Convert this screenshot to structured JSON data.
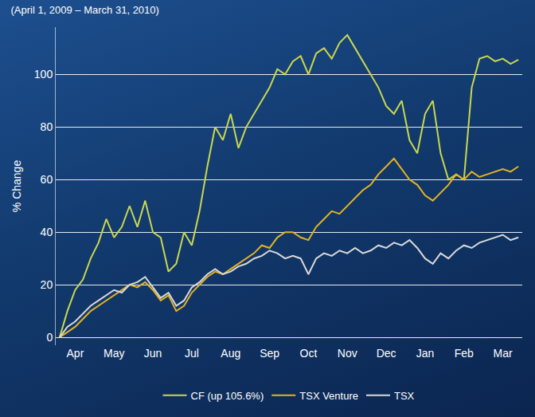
{
  "chart_data": {
    "type": "line",
    "title": "(April 1, 2009 – March 31, 2010)",
    "y_label": "% Change",
    "categories": [
      null,
      null,
      "Apr",
      null,
      null,
      null,
      null,
      "May",
      null,
      null,
      null,
      null,
      "Jun",
      null,
      null,
      null,
      null,
      "Jul",
      null,
      null,
      null,
      null,
      "Aug",
      null,
      null,
      null,
      null,
      "Sep",
      null,
      null,
      null,
      null,
      "Oct",
      null,
      null,
      null,
      null,
      "Nov",
      null,
      null,
      null,
      null,
      "Dec",
      null,
      null,
      null,
      null,
      "Jan",
      null,
      null,
      null,
      null,
      "Feb",
      null,
      null,
      null,
      null,
      "Mar",
      null,
      null
    ],
    "series": [
      {
        "name": "CF (up 105.6%)",
        "color": "#c9d84c",
        "values": [
          0,
          10,
          18,
          22,
          30,
          36,
          45,
          38,
          42,
          50,
          42,
          52,
          40,
          38,
          25,
          28,
          40,
          35,
          48,
          65,
          80,
          75,
          85,
          72,
          80,
          85,
          90,
          95,
          102,
          100,
          105,
          107,
          100,
          108,
          110,
          106,
          112,
          115,
          110,
          105,
          100,
          95,
          88,
          85,
          90,
          75,
          70,
          85,
          90,
          70,
          60,
          62,
          60,
          95,
          106,
          107,
          105,
          106,
          104,
          105.6
        ]
      },
      {
        "name": "TSX Venture",
        "color": "#e3b322",
        "values": [
          0,
          2,
          4,
          7,
          10,
          12,
          14,
          16,
          18,
          20,
          19,
          21,
          18,
          14,
          16,
          10,
          12,
          17,
          20,
          23,
          25,
          24,
          26,
          28,
          30,
          32,
          35,
          34,
          38,
          40,
          40,
          38,
          37,
          42,
          45,
          48,
          47,
          50,
          53,
          56,
          58,
          62,
          65,
          68,
          64,
          60,
          58,
          54,
          52,
          55,
          58,
          62,
          60,
          63,
          61,
          62,
          63,
          64,
          63,
          65
        ]
      },
      {
        "name": "TSX",
        "color": "#d9d9d9",
        "values": [
          0,
          4,
          6,
          9,
          12,
          14,
          16,
          18,
          17,
          20,
          21,
          23,
          19,
          15,
          17,
          12,
          14,
          19,
          21,
          24,
          26,
          24,
          25,
          27,
          28,
          30,
          31,
          33,
          32,
          30,
          31,
          30,
          24,
          30,
          32,
          31,
          33,
          32,
          34,
          32,
          33,
          35,
          34,
          36,
          35,
          37,
          34,
          30,
          28,
          32,
          30,
          33,
          35,
          34,
          36,
          37,
          38,
          39,
          37,
          38
        ]
      }
    ],
    "ylim": [
      -3,
      118
    ],
    "yticks": [
      0,
      20,
      40,
      60,
      80,
      100
    ],
    "grid": true,
    "legend": "bottom"
  }
}
